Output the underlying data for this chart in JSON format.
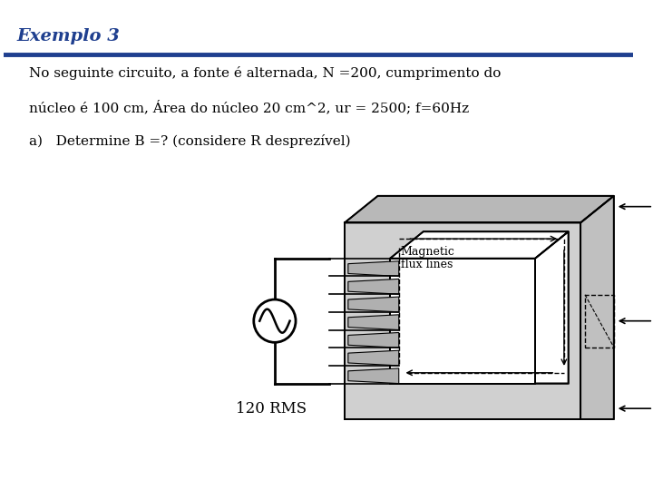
{
  "title": "Exemplo 3",
  "title_color": "#1F3F8F",
  "line_color": "#1F3F8F",
  "bg_color": "#ffffff",
  "text_line1": "No seguinte circuito, a fonte é alternada, N =200, cumprimento do",
  "text_line2": "núcleo é 100 cm, Área do núcleo 20 cm^2, ur = 2500; f=60Hz",
  "text_line3": "a)   Determine B =? (considere R desprezível)",
  "label_rms": "120 RMS",
  "label_magnetic": "Magnetic",
  "label_flux": "flux lines",
  "font_size_title": 14,
  "font_size_text": 11
}
